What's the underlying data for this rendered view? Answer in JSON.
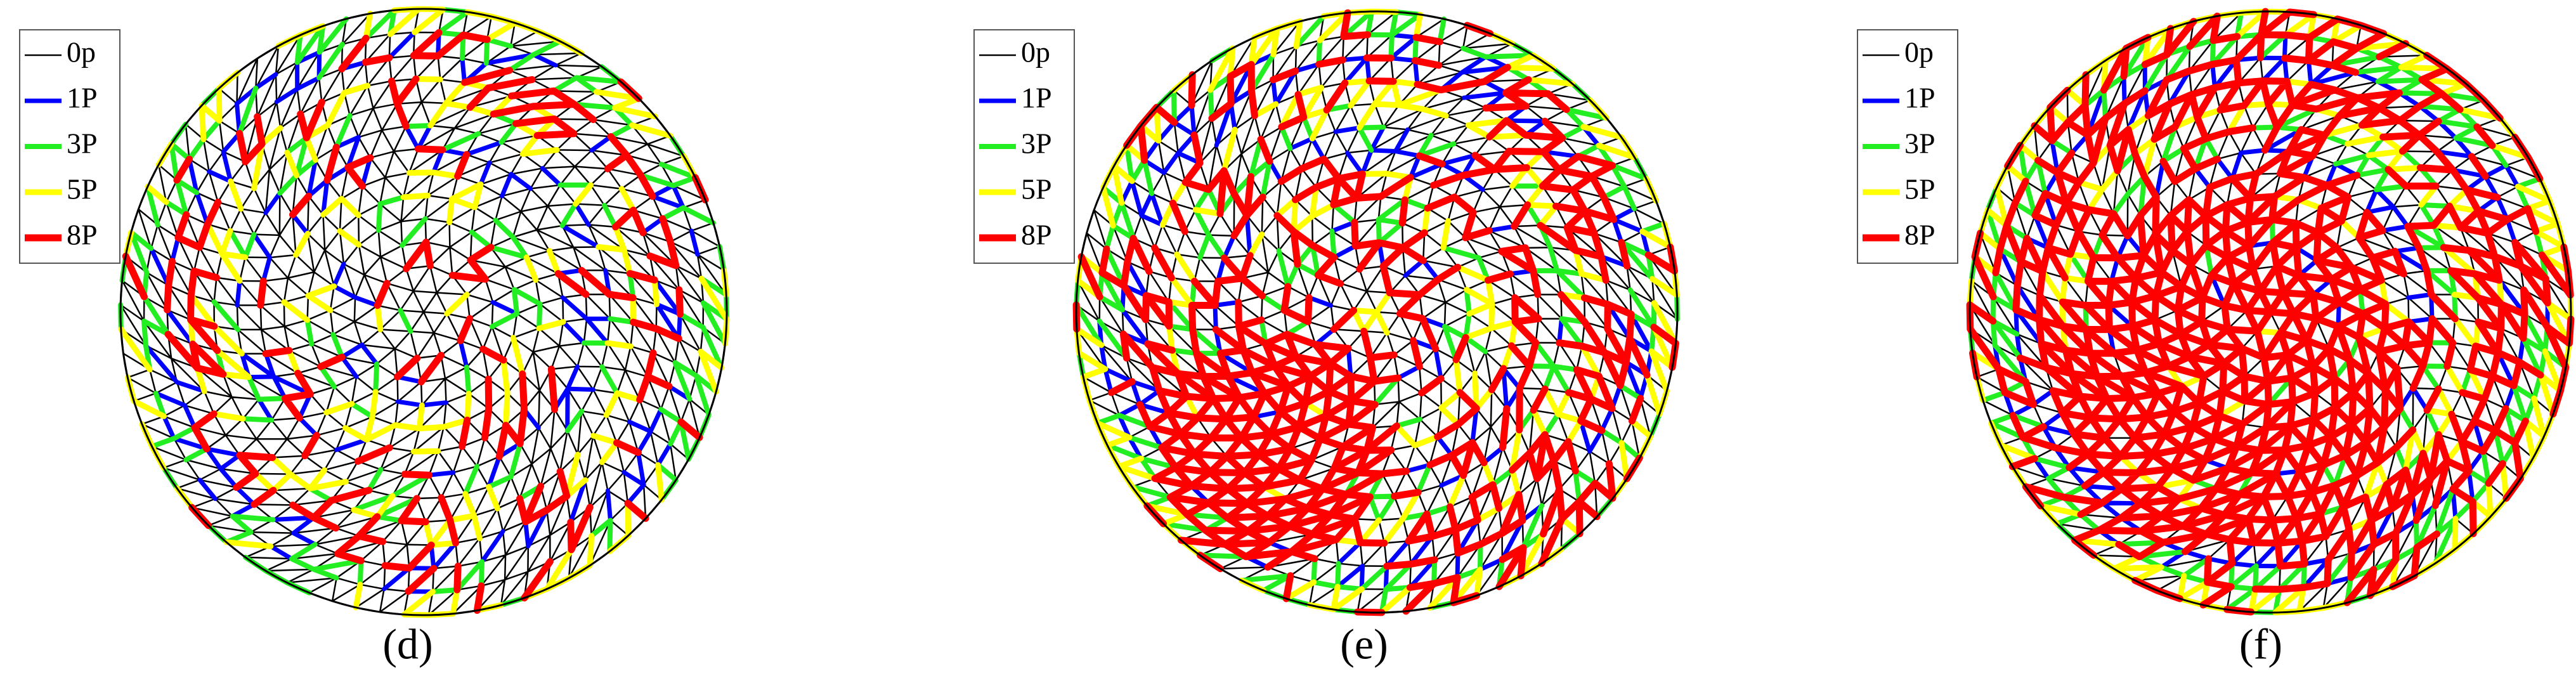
{
  "panels": [
    {
      "label": "(d)",
      "legend": [
        {
          "label": "0p",
          "color": "#000000"
        },
        {
          "label": "1P",
          "color": "#0000ff"
        },
        {
          "label": "3P",
          "color": "#22ee22"
        },
        {
          "label": "5P",
          "color": "#ffff00"
        },
        {
          "label": "8P",
          "color": "#ff0000"
        }
      ]
    },
    {
      "label": "(e)",
      "legend": [
        {
          "label": "0p",
          "color": "#000000"
        },
        {
          "label": "1P",
          "color": "#0000ff"
        },
        {
          "label": "3P",
          "color": "#22ee22"
        },
        {
          "label": "5P",
          "color": "#ffff00"
        },
        {
          "label": "8P",
          "color": "#ff0000"
        }
      ]
    },
    {
      "label": "(f)",
      "legend": [
        {
          "label": "0p",
          "color": "#000000"
        },
        {
          "label": "1P",
          "color": "#0000ff"
        },
        {
          "label": "3P",
          "color": "#22ee22"
        },
        {
          "label": "5P",
          "color": "#ffff00"
        },
        {
          "label": "8P",
          "color": "#ff0000"
        }
      ]
    }
  ]
}
